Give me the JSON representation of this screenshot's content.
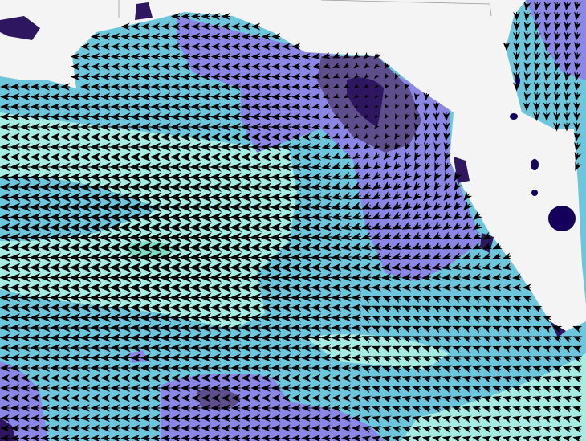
{
  "map": {
    "type": "vector-field-over-filled-contours",
    "region": "Gulf of Mexico",
    "colors": {
      "land": "#f4f4f4",
      "border": "#9a9a9a",
      "lake": "#14005a",
      "level_pale": "#a6ece2",
      "level_pale_green": "#7fdcc4",
      "level_teal": "#6ec6dc",
      "level_light_purple": "#8c86e4",
      "level_mid_purple": "#5e4e8c",
      "level_dark_purple": "#2e1660",
      "arrow": "#000000"
    }
  }
}
